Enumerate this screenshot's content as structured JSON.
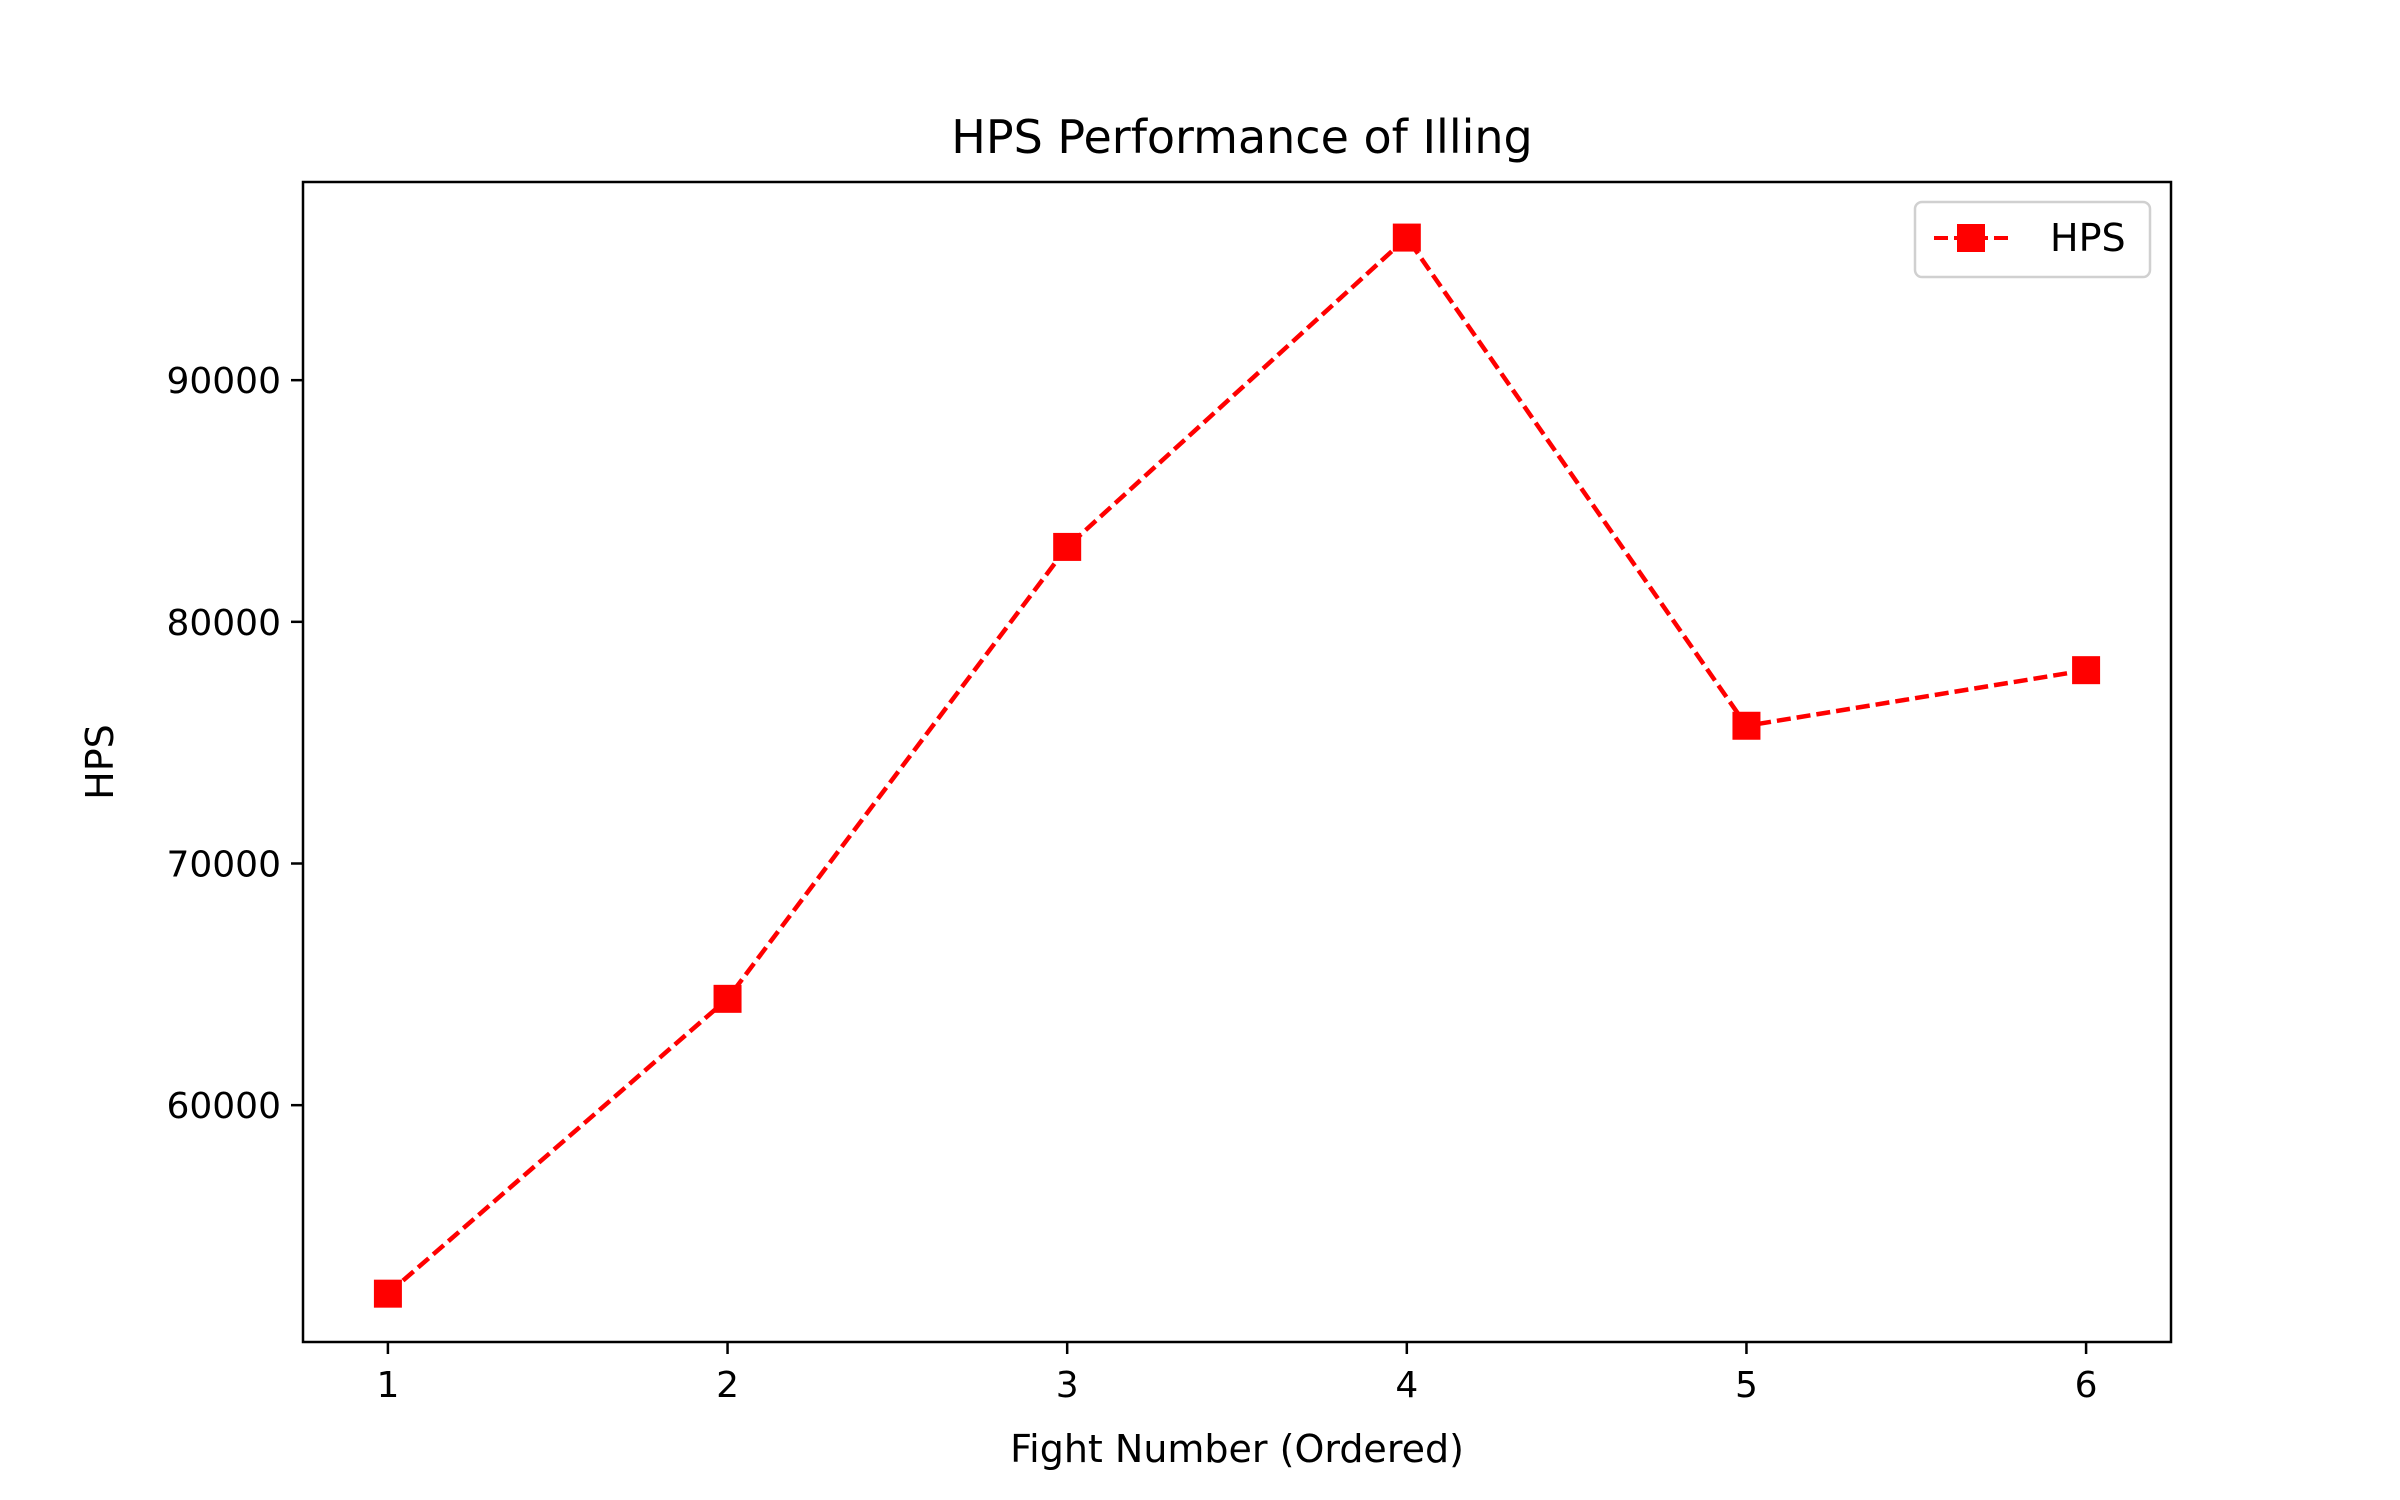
{
  "chart_data": {
    "type": "line",
    "title": "HPS Performance of Illing",
    "xlabel": "Fight Number (Ordered)",
    "ylabel": "HPS",
    "x": [
      1,
      2,
      3,
      4,
      5,
      6
    ],
    "xticks": [
      "1",
      "2",
      "3",
      "4",
      "5",
      "6"
    ],
    "yticks": [
      "60000",
      "70000",
      "80000",
      "90000"
    ],
    "ytick_values": [
      60000,
      70000,
      80000,
      90000
    ],
    "xlim": [
      0.75,
      6.25
    ],
    "ylim": [
      50200,
      98200
    ],
    "grid": false,
    "legend_position": "top-right",
    "series": [
      {
        "name": "HPS",
        "values": [
          52200,
          64400,
          83100,
          95900,
          75700,
          78000
        ],
        "color": "#ff0000",
        "line_style": "dashed",
        "marker": "square"
      }
    ]
  }
}
